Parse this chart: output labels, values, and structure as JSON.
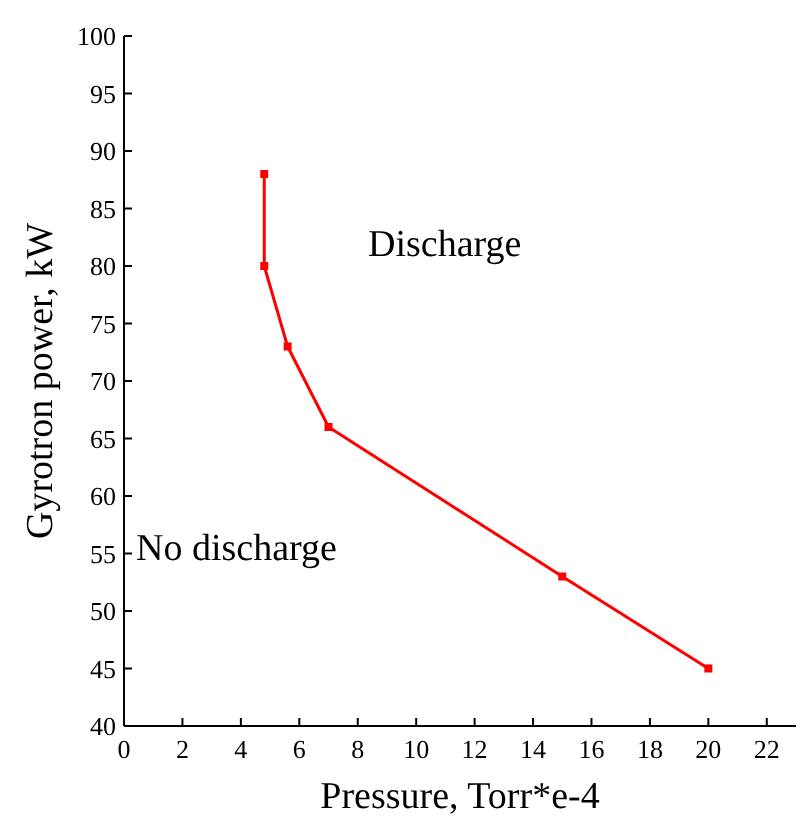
{
  "chart_data": {
    "type": "line",
    "xlabel": "Pressure, Torr*e-4",
    "ylabel": "Gyrotron power, kW",
    "x": [
      4.8,
      4.8,
      5.6,
      7,
      15,
      20
    ],
    "series": [
      {
        "color": "#ff0000",
        "values": [
          88,
          80,
          73,
          66,
          53,
          45
        ]
      }
    ],
    "xlim": [
      0,
      23
    ],
    "xticks": [
      0,
      2,
      4,
      6,
      8,
      10,
      12,
      14,
      16,
      18,
      20,
      22
    ],
    "ylim": [
      40,
      100
    ],
    "yticks": [
      40,
      45,
      50,
      55,
      60,
      65,
      70,
      75,
      80,
      85,
      90,
      95,
      100
    ],
    "marker": "square",
    "line_style": "solid",
    "grid": false,
    "annotations": [
      "Discharge",
      "No discharge"
    ]
  }
}
